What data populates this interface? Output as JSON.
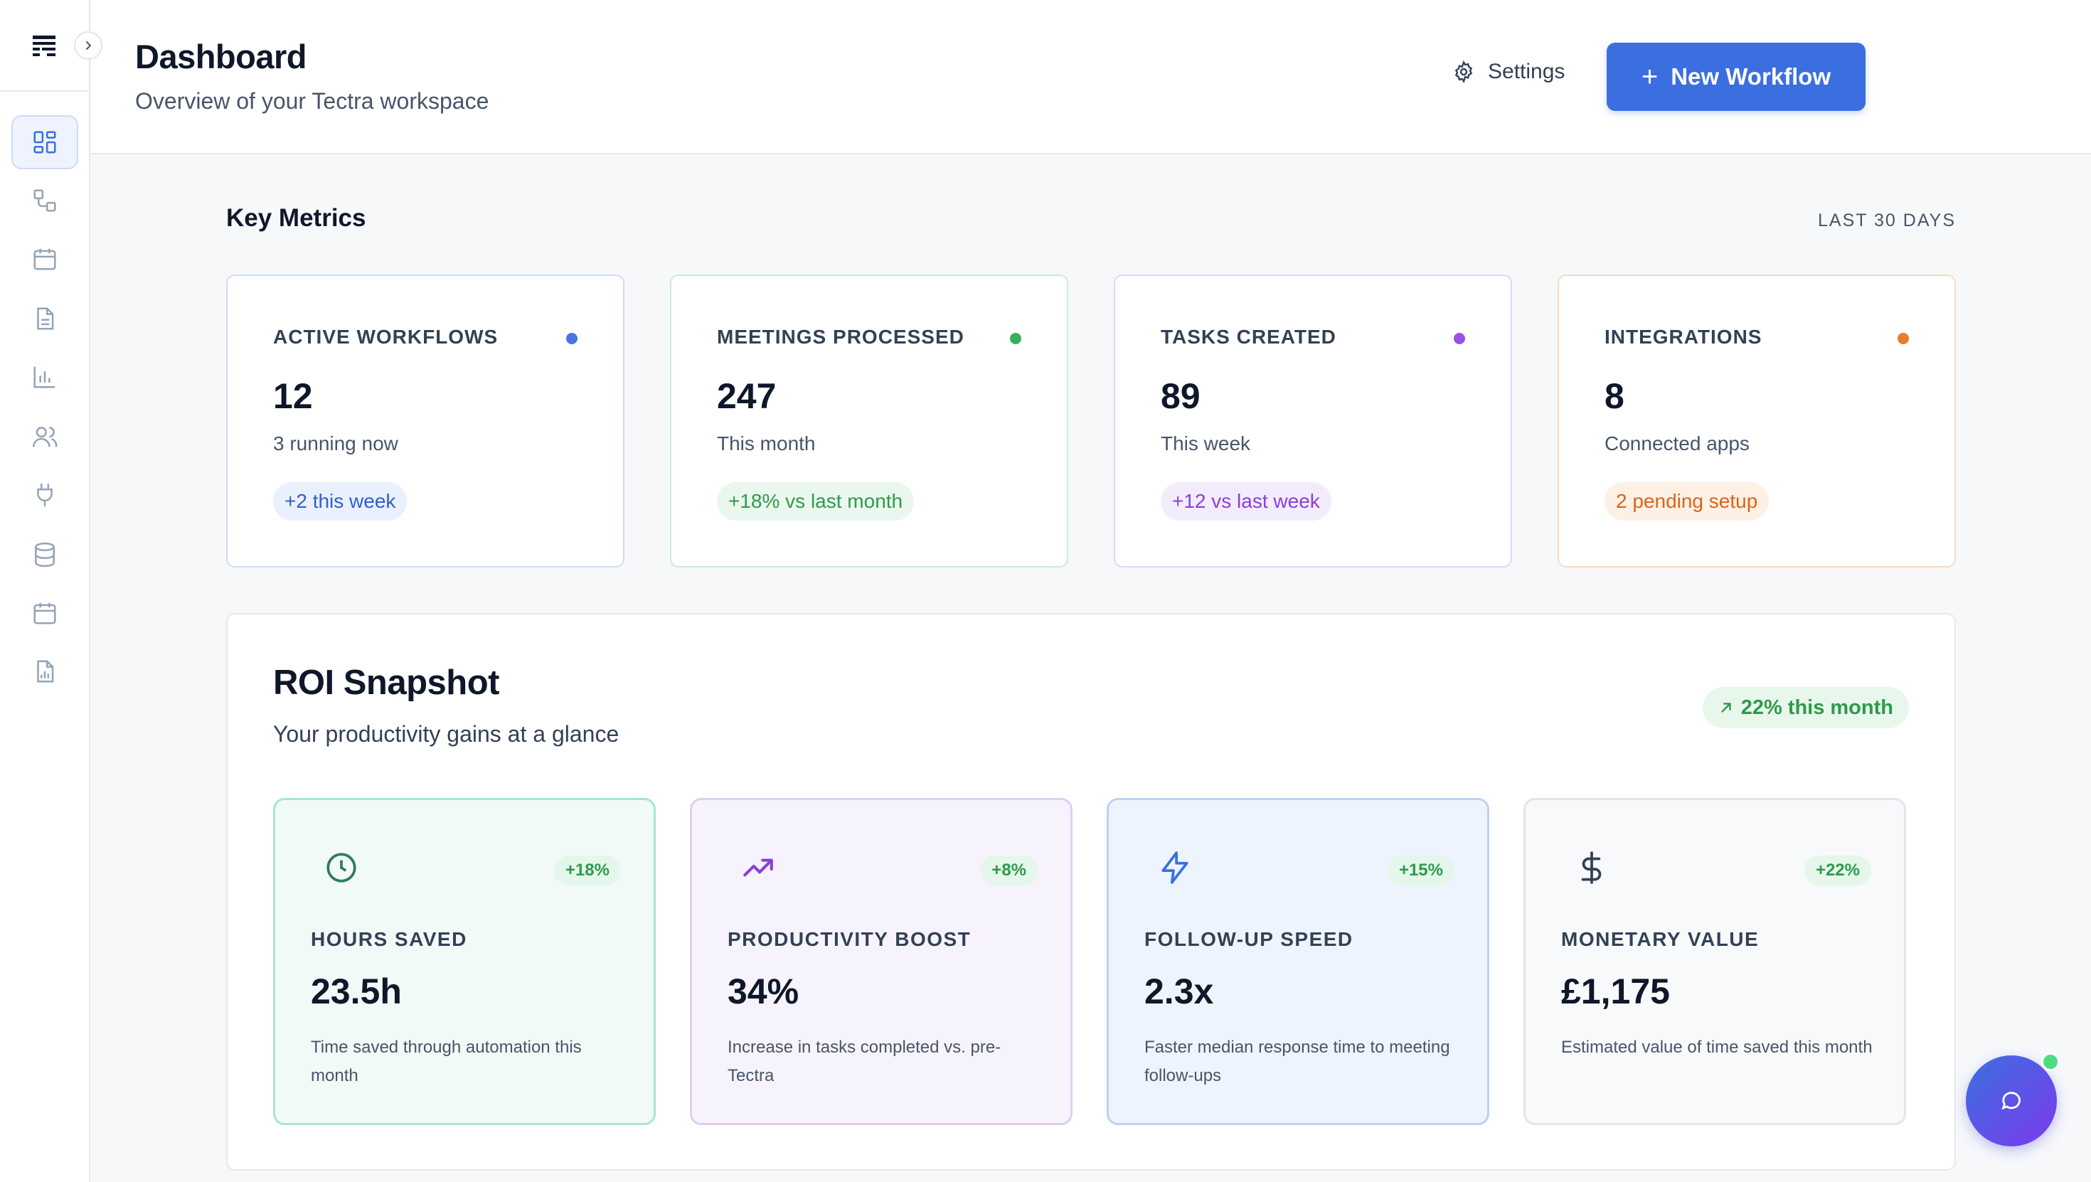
{
  "header": {
    "title": "Dashboard",
    "subtitle": "Overview of your Tectra workspace",
    "settings_label": "Settings",
    "new_workflow_label": "New Workflow"
  },
  "sidebar": {
    "items": [
      {
        "icon": "dashboard-icon",
        "active": true
      },
      {
        "icon": "workflow-icon"
      },
      {
        "icon": "calendar-icon"
      },
      {
        "icon": "document-icon"
      },
      {
        "icon": "bar-chart-icon"
      },
      {
        "icon": "users-icon"
      },
      {
        "icon": "plug-icon"
      },
      {
        "icon": "database-icon"
      },
      {
        "icon": "calendar-icon"
      },
      {
        "icon": "report-icon"
      }
    ]
  },
  "key_metrics": {
    "title": "Key Metrics",
    "range": "LAST 30 DAYS",
    "cards": [
      {
        "label": "ACTIVE WORKFLOWS",
        "value": "12",
        "sub": "3 running now",
        "badge": "+2 this week",
        "accent": "#3b6fe0"
      },
      {
        "label": "MEETINGS PROCESSED",
        "value": "247",
        "sub": "This month",
        "badge": "+18% vs last month",
        "accent": "#34b257"
      },
      {
        "label": "TASKS CREATED",
        "value": "89",
        "sub": "This week",
        "badge": "+12 vs last week",
        "accent": "#9b4ee8"
      },
      {
        "label": "INTEGRATIONS",
        "value": "8",
        "sub": "Connected apps",
        "badge": "2 pending setup",
        "accent": "#ea7a2c"
      }
    ]
  },
  "roi": {
    "title": "ROI Snapshot",
    "subtitle": "Your productivity gains at a glance",
    "badge": "22% this month",
    "cards": [
      {
        "icon": "clock-icon",
        "pct": "+18%",
        "label": "HOURS SAVED",
        "value": "23.5h",
        "desc": "Time saved through automation this month"
      },
      {
        "icon": "trending-up-icon",
        "pct": "+8%",
        "label": "PRODUCTIVITY BOOST",
        "value": "34%",
        "desc": "Increase in tasks completed vs. pre-Tectra"
      },
      {
        "icon": "lightning-icon",
        "pct": "+15%",
        "label": "FOLLOW-UP SPEED",
        "value": "2.3x",
        "desc": "Faster median response time to meeting follow-ups"
      },
      {
        "icon": "dollar-icon",
        "pct": "+22%",
        "label": "MONETARY VALUE",
        "value": "£1,175",
        "desc": "Estimated value of time saved this month"
      }
    ]
  }
}
